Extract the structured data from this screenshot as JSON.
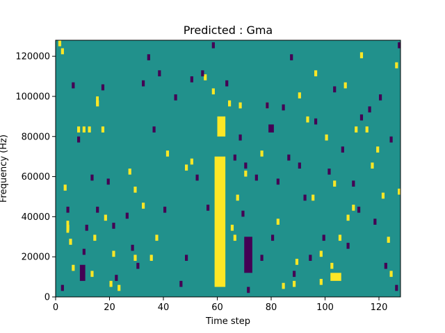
{
  "chart_data": {
    "type": "heatmap",
    "title": "Predicted : Gma",
    "xlabel": "Time step",
    "ylabel": "Frequency (Hz)",
    "xlim": [
      0,
      128
    ],
    "ylim": [
      0,
      128000
    ],
    "xticks": [
      0,
      20,
      40,
      60,
      80,
      100,
      120
    ],
    "yticks": [
      0,
      20000,
      40000,
      60000,
      80000,
      100000,
      120000
    ],
    "n_time": 128,
    "n_freq": 128,
    "grid": false,
    "legend": "none",
    "colors": {
      "background": "#21918c",
      "high": "#fde725",
      "low": "#440154"
    },
    "column_bands": [
      {
        "x0": 59,
        "x1": 63,
        "y0": 5000,
        "y1": 70000,
        "value": "high"
      },
      {
        "x0": 60,
        "x1": 63,
        "y0": 80000,
        "y1": 90000,
        "value": "high"
      },
      {
        "x0": 70,
        "x1": 73,
        "y0": 12000,
        "y1": 30000,
        "value": "low"
      },
      {
        "x0": 79,
        "x1": 81,
        "y0": 82000,
        "y1": 86000,
        "value": "low"
      },
      {
        "x0": 9,
        "x1": 11,
        "y0": 8000,
        "y1": 16000,
        "value": "low"
      },
      {
        "x0": 102,
        "x1": 106,
        "y0": 8000,
        "y1": 12000,
        "value": "high"
      },
      {
        "x0": 4,
        "x1": 5,
        "y0": 32000,
        "y1": 38000,
        "value": "high"
      },
      {
        "x0": 15,
        "x1": 16,
        "y0": 96000,
        "y1": 100000,
        "value": "high"
      }
    ],
    "scatter_high": [
      [
        1,
        127
      ],
      [
        2,
        123
      ],
      [
        3,
        55
      ],
      [
        4,
        35
      ],
      [
        5,
        28
      ],
      [
        6,
        15
      ],
      [
        8,
        84
      ],
      [
        10,
        84
      ],
      [
        12,
        84
      ],
      [
        13,
        12
      ],
      [
        14,
        30
      ],
      [
        15,
        97
      ],
      [
        17,
        84
      ],
      [
        18,
        40
      ],
      [
        20,
        7
      ],
      [
        21,
        22
      ],
      [
        23,
        5
      ],
      [
        27,
        63
      ],
      [
        29,
        20
      ],
      [
        29,
        54
      ],
      [
        32,
        46
      ],
      [
        35,
        20
      ],
      [
        37,
        30
      ],
      [
        41,
        72
      ],
      [
        48,
        65
      ],
      [
        50,
        68
      ],
      [
        55,
        110
      ],
      [
        58,
        103
      ],
      [
        64,
        97
      ],
      [
        65,
        35
      ],
      [
        66,
        30
      ],
      [
        67,
        50
      ],
      [
        68,
        96
      ],
      [
        70,
        62
      ],
      [
        76,
        72
      ],
      [
        78,
        96
      ],
      [
        82,
        38
      ],
      [
        84,
        6
      ],
      [
        88,
        7
      ],
      [
        89,
        18
      ],
      [
        90,
        101
      ],
      [
        93,
        89
      ],
      [
        95,
        50
      ],
      [
        96,
        112
      ],
      [
        98,
        8
      ],
      [
        98,
        22
      ],
      [
        100,
        80
      ],
      [
        102,
        16
      ],
      [
        103,
        57
      ],
      [
        105,
        30
      ],
      [
        107,
        106
      ],
      [
        108,
        40
      ],
      [
        110,
        45
      ],
      [
        111,
        84
      ],
      [
        113,
        121
      ],
      [
        115,
        84
      ],
      [
        117,
        66
      ],
      [
        119,
        74
      ],
      [
        121,
        51
      ],
      [
        123,
        29
      ],
      [
        124,
        12
      ],
      [
        126,
        116
      ],
      [
        127,
        53
      ]
    ],
    "scatter_low": [
      [
        2,
        5
      ],
      [
        4,
        44
      ],
      [
        6,
        106
      ],
      [
        8,
        79
      ],
      [
        10,
        23
      ],
      [
        11,
        35
      ],
      [
        13,
        60
      ],
      [
        15,
        44
      ],
      [
        17,
        105
      ],
      [
        19,
        58
      ],
      [
        21,
        36
      ],
      [
        22,
        10
      ],
      [
        26,
        41
      ],
      [
        28,
        25
      ],
      [
        30,
        16
      ],
      [
        32,
        107
      ],
      [
        34,
        120
      ],
      [
        36,
        84
      ],
      [
        38,
        112
      ],
      [
        40,
        44
      ],
      [
        44,
        100
      ],
      [
        46,
        7
      ],
      [
        48,
        20
      ],
      [
        50,
        109
      ],
      [
        52,
        60
      ],
      [
        54,
        112
      ],
      [
        56,
        45
      ],
      [
        58,
        126
      ],
      [
        63,
        107
      ],
      [
        66,
        70
      ],
      [
        68,
        80
      ],
      [
        69,
        42
      ],
      [
        70,
        66
      ],
      [
        71,
        4
      ],
      [
        74,
        60
      ],
      [
        76,
        20
      ],
      [
        78,
        96
      ],
      [
        80,
        30
      ],
      [
        82,
        58
      ],
      [
        84,
        95
      ],
      [
        86,
        70
      ],
      [
        87,
        120
      ],
      [
        88,
        12
      ],
      [
        90,
        66
      ],
      [
        92,
        50
      ],
      [
        94,
        20
      ],
      [
        96,
        88
      ],
      [
        99,
        30
      ],
      [
        101,
        63
      ],
      [
        103,
        104
      ],
      [
        106,
        74
      ],
      [
        108,
        26
      ],
      [
        110,
        57
      ],
      [
        112,
        44
      ],
      [
        113,
        90
      ],
      [
        116,
        94
      ],
      [
        118,
        38
      ],
      [
        120,
        100
      ],
      [
        122,
        16
      ],
      [
        124,
        79
      ],
      [
        126,
        5
      ],
      [
        127,
        126
      ]
    ]
  }
}
